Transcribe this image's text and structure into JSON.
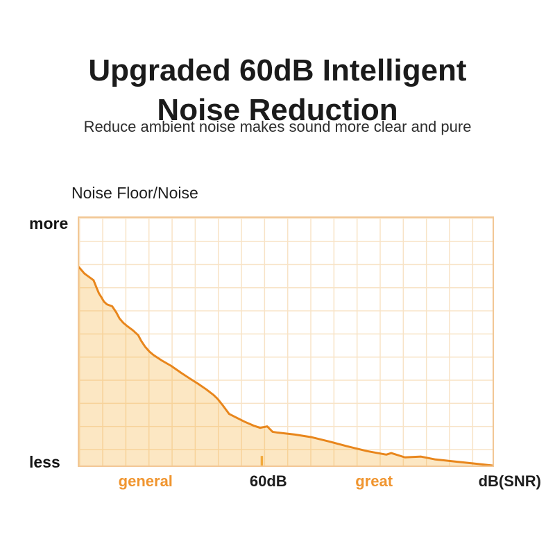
{
  "header": {
    "title_line1": "Upgraded 60dB Intelligent",
    "title_line2": "Noise Reduction",
    "subtitle": "Reduce ambient noise makes sound more clear and pure"
  },
  "chart_data": {
    "type": "area",
    "title": "Noise Floor/Noise",
    "xlabel": "dB(SNR)",
    "ylabel": "Noise Floor/Noise",
    "grid": true,
    "grid_cols": 18,
    "grid_rows": 11,
    "y_axis": {
      "qualitative": true,
      "top": "more",
      "bottom": "less",
      "scale_note": "y_pct: 0 = less (bottom edge), 100 = more (top edge)"
    },
    "x_axis": {
      "tick_x_pct": 44.2,
      "labels": [
        {
          "text": "general",
          "x_pct": 16.3,
          "emphasis": "orange"
        },
        {
          "text": "60dB",
          "x_pct": 45.8,
          "emphasis": "dark"
        },
        {
          "text": "great",
          "x_pct": 71.2,
          "emphasis": "orange"
        },
        {
          "text": "dB(SNR)",
          "x_pct": 103.8,
          "emphasis": "dark"
        }
      ]
    },
    "series": [
      {
        "name": "noise-floor-curve",
        "points_pct": [
          [
            0,
            80
          ],
          [
            1.3,
            77.5
          ],
          [
            3.5,
            74.8
          ],
          [
            4.3,
            71.5
          ],
          [
            4.8,
            69.5
          ],
          [
            5.3,
            68.2
          ],
          [
            6,
            66.2
          ],
          [
            6.7,
            65.1
          ],
          [
            8,
            64.3
          ],
          [
            9,
            61.8
          ],
          [
            9.8,
            59.3
          ],
          [
            10.7,
            57.6
          ],
          [
            11.7,
            56.2
          ],
          [
            13,
            54.6
          ],
          [
            14.3,
            52.6
          ],
          [
            15,
            50.4
          ],
          [
            16,
            47.9
          ],
          [
            17,
            46
          ],
          [
            18,
            44.6
          ],
          [
            20,
            42.4
          ],
          [
            22.3,
            40.2
          ],
          [
            24.7,
            37.4
          ],
          [
            26.7,
            35.2
          ],
          [
            28.8,
            33
          ],
          [
            30.8,
            30.7
          ],
          [
            32.5,
            28.5
          ],
          [
            33.5,
            26.9
          ],
          [
            34.7,
            24.4
          ],
          [
            36.3,
            20.8
          ],
          [
            38,
            19.4
          ],
          [
            40,
            17.7
          ],
          [
            42.2,
            16.1
          ],
          [
            43.8,
            15.2
          ],
          [
            45.5,
            15.8
          ],
          [
            46.8,
            13.6
          ],
          [
            48,
            13.3
          ],
          [
            52.2,
            12.5
          ],
          [
            56.3,
            11.4
          ],
          [
            60.5,
            9.7
          ],
          [
            64.7,
            7.8
          ],
          [
            69.7,
            5.8
          ],
          [
            74.3,
            4.4
          ],
          [
            75.5,
            5
          ],
          [
            78.8,
            3.3
          ],
          [
            82.7,
            3.6
          ],
          [
            86,
            2.5
          ],
          [
            90.5,
            1.7
          ],
          [
            95.5,
            0.8
          ],
          [
            100,
            0
          ]
        ]
      }
    ],
    "colors": {
      "curve": "#E8861C",
      "area_fill": "rgba(245,166,35,0.27)",
      "grid_line": "#F8E3C6",
      "plot_border": "#F2C795",
      "tick": "#F2A93B",
      "orange_label": "#F0952F",
      "dark_text": "#1b1b1b"
    }
  }
}
